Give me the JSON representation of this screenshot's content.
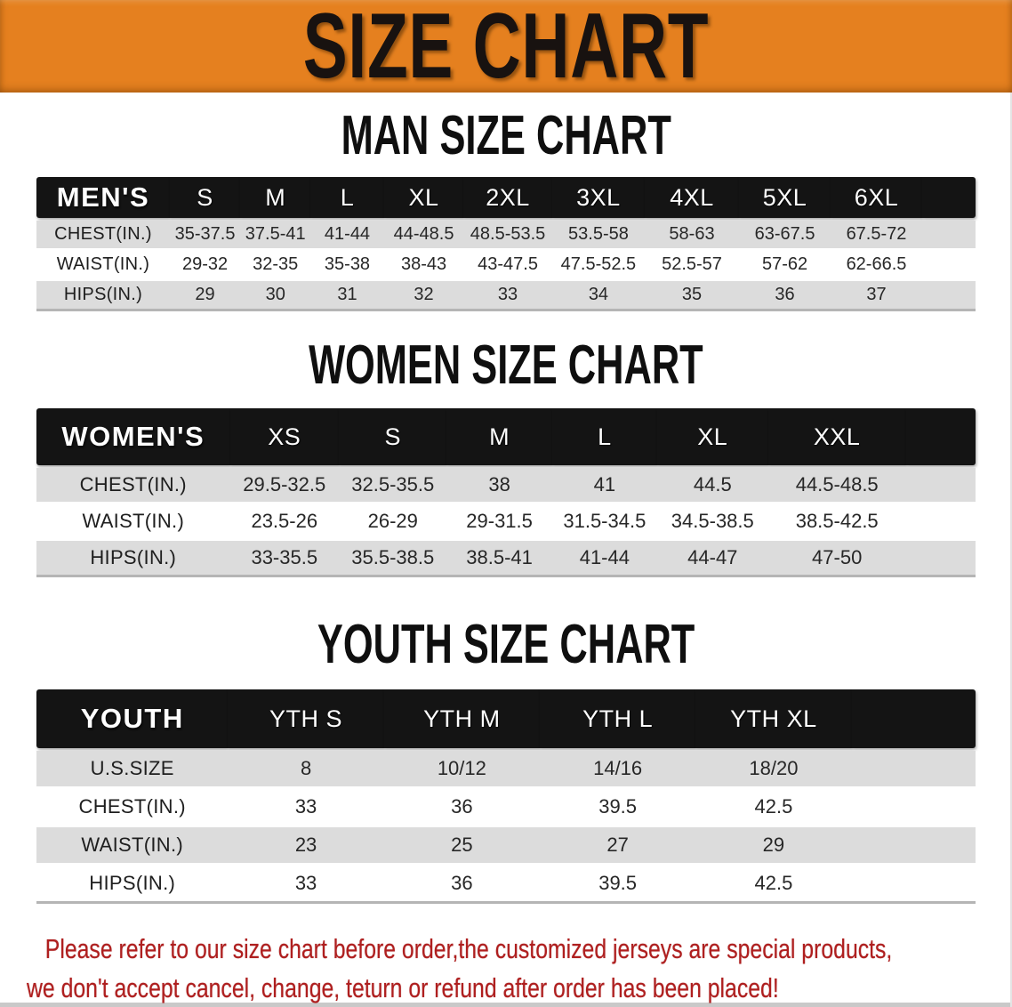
{
  "banner": {
    "title": "SIZE CHART",
    "bg_color": "#E5801F",
    "text_color": "#181210"
  },
  "headings": {
    "men": "MAN SIZE CHART",
    "women": "WOMEN SIZE CHART",
    "youth": "YOUTH SIZE CHART"
  },
  "tables": {
    "men": {
      "header_label": "MEN'S",
      "columns": [
        "S",
        "M",
        "L",
        "XL",
        "2XL",
        "3XL",
        "4XL",
        "5XL",
        "6XL"
      ],
      "rows": [
        {
          "label": "CHEST(IN.)",
          "values": [
            "35-37.5",
            "37.5-41",
            "41-44",
            "44-48.5",
            "48.5-53.5",
            "53.5-58",
            "58-63",
            "63-67.5",
            "67.5-72"
          ]
        },
        {
          "label": "WAIST(IN.)",
          "values": [
            "29-32",
            "32-35",
            "35-38",
            "38-43",
            "43-47.5",
            "47.5-52.5",
            "52.5-57",
            "57-62",
            "62-66.5"
          ]
        },
        {
          "label": "HIPS(IN.)",
          "values": [
            "29",
            "30",
            "31",
            "32",
            "33",
            "34",
            "35",
            "36",
            "37"
          ]
        }
      ]
    },
    "women": {
      "header_label": "WOMEN'S",
      "columns": [
        "XS",
        "S",
        "M",
        "L",
        "XL",
        "XXL"
      ],
      "rows": [
        {
          "label": "CHEST(IN.)",
          "values": [
            "29.5-32.5",
            "32.5-35.5",
            "38",
            "41",
            "44.5",
            "44.5-48.5"
          ]
        },
        {
          "label": "WAIST(IN.)",
          "values": [
            "23.5-26",
            "26-29",
            "29-31.5",
            "31.5-34.5",
            "34.5-38.5",
            "38.5-42.5"
          ]
        },
        {
          "label": "HIPS(IN.)",
          "values": [
            "33-35.5",
            "35.5-38.5",
            "38.5-41",
            "41-44",
            "44-47",
            "47-50"
          ]
        }
      ]
    },
    "youth": {
      "header_label": "YOUTH",
      "columns": [
        "YTH S",
        "YTH M",
        "YTH L",
        "YTH XL"
      ],
      "rows": [
        {
          "label": "U.S.SIZE",
          "values": [
            "8",
            "10/12",
            "14/16",
            "18/20"
          ]
        },
        {
          "label": "CHEST(IN.)",
          "values": [
            "33",
            "36",
            "39.5",
            "42.5"
          ]
        },
        {
          "label": "WAIST(IN.)",
          "values": [
            "23",
            "25",
            "27",
            "29"
          ]
        },
        {
          "label": "HIPS(IN.)",
          "values": [
            "33",
            "36",
            "39.5",
            "42.5"
          ]
        }
      ]
    }
  },
  "footer": {
    "line1": "Please refer to our size chart before order,the customized jerseys are special products,",
    "line2": "we don't accept cancel, change, teturn or refund after order has been placed!",
    "text_color": "#AF1F1F"
  },
  "colors": {
    "header_row_bg": "#141414",
    "stripe_row_bg": "#DCDCDC",
    "value_text": "#272727"
  }
}
